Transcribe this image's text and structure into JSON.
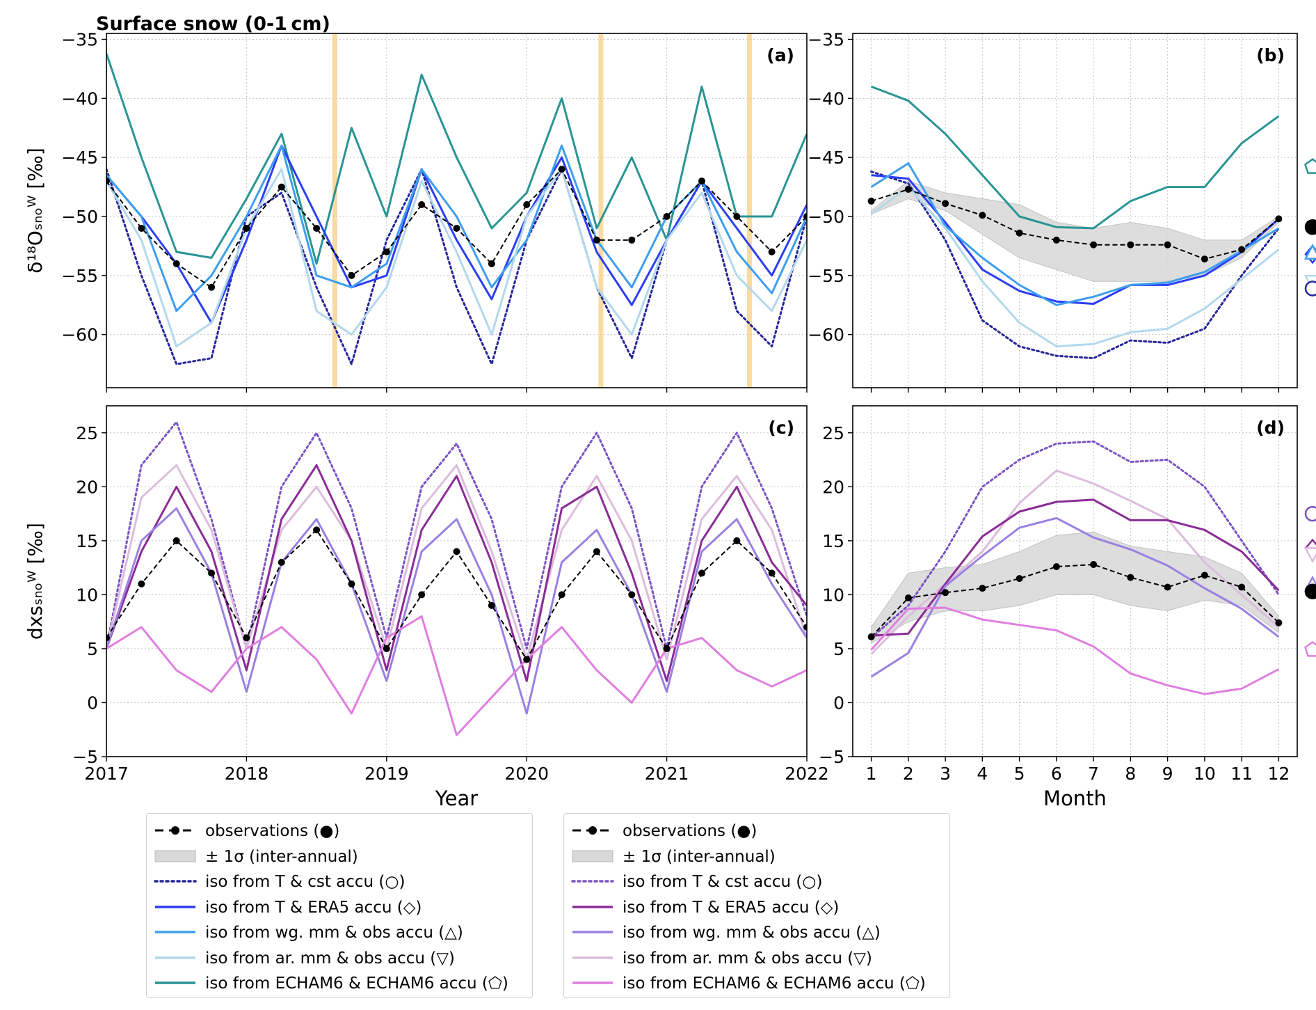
{
  "figure_title": "Surface snow (0-1 cm)",
  "colors": {
    "obs": "#000000",
    "teal": "#2a9494",
    "blue_dot": "#24249a",
    "blue_era5": "#2b3ef5",
    "blue_wg": "#3e9ef0",
    "blue_ar": "#b2d8ec",
    "purple_dot": "#7a52c4",
    "purple_era5": "#8a2c96",
    "purple_wg": "#9a80e2",
    "purple_ar": "#dcbcdc",
    "pink_echam": "#e07ee0",
    "band": "#d8d8d8",
    "highlight": "#f6c870"
  },
  "chart_data": [
    {
      "panel": "a",
      "type": "line",
      "ylabel": "δ¹⁸Oₛₙₒᵂ [‰]",
      "xlabel": "Year",
      "xlim": [
        2017,
        2022
      ],
      "ylim": [
        -64.5,
        -34.5
      ],
      "xticks": [
        "2017",
        "2018",
        "2019",
        "2020",
        "2021",
        "2022"
      ],
      "yticks": [
        "−35",
        "−40",
        "−45",
        "−50",
        "−55",
        "−60"
      ],
      "highlight_x": [
        2018.63,
        2020.53,
        2021.59
      ],
      "x": [
        2017.0,
        2017.25,
        2017.5,
        2017.75,
        2018.0,
        2018.25,
        2018.5,
        2018.75,
        2019.0,
        2019.25,
        2019.5,
        2019.75,
        2020.0,
        2020.25,
        2020.5,
        2020.75,
        2021.0,
        2021.25,
        2021.5,
        2021.75,
        2022.0
      ],
      "series": [
        {
          "name": "iso from ECHAM6 & ECHAM6 accu",
          "key": "teal",
          "values": [
            -36.2,
            -45.0,
            -53.0,
            -53.5,
            -48.5,
            -43.0,
            -54.0,
            -42.5,
            -50.0,
            -38.0,
            -45.0,
            -51.0,
            -48.0,
            -40.0,
            -51.0,
            -45.0,
            -52.0,
            -39.0,
            -50.0,
            -50.0,
            -43.0
          ]
        },
        {
          "name": "iso from T & cst accu",
          "key": "blue_dot",
          "values": [
            -46.0,
            -55.0,
            -62.5,
            -62.0,
            -50.0,
            -48.0,
            -56.0,
            -62.5,
            -52.0,
            -46.0,
            -56.0,
            -62.5,
            -52.0,
            -46.0,
            -56.0,
            -62.0,
            -52.0,
            -47.0,
            -58.0,
            -61.0,
            -50.0
          ]
        },
        {
          "name": "iso from T & ERA5 accu",
          "key": "blue_era5",
          "values": [
            -46.5,
            -50.0,
            -54.0,
            -59.0,
            -52.0,
            -44.0,
            -50.0,
            -56.0,
            -55.0,
            -46.0,
            -52.0,
            -57.0,
            -50.0,
            -45.0,
            -53.0,
            -57.5,
            -52.0,
            -47.0,
            -51.0,
            -55.0,
            -49.0
          ]
        },
        {
          "name": "iso from wg. mm & obs accu",
          "key": "blue_wg",
          "values": [
            -46.5,
            -50.0,
            -58.0,
            -55.0,
            -50.0,
            -44.0,
            -55.0,
            -56.0,
            -54.0,
            -46.0,
            -50.0,
            -56.0,
            -52.0,
            -44.0,
            -52.0,
            -56.0,
            -50.0,
            -47.0,
            -53.0,
            -56.5,
            -50.0
          ]
        },
        {
          "name": "iso from ar. mm & obs accu",
          "key": "blue_ar",
          "values": [
            -47.0,
            -52.0,
            -61.0,
            -59.0,
            -51.0,
            -46.0,
            -58.0,
            -60.0,
            -56.0,
            -47.0,
            -53.0,
            -60.0,
            -50.0,
            -46.0,
            -56.0,
            -60.0,
            -52.0,
            -48.0,
            -55.0,
            -58.0,
            -52.0
          ]
        },
        {
          "name": "observations",
          "key": "obs",
          "values": [
            -47.0,
            -51.0,
            -54.0,
            -56.0,
            -51.0,
            -47.5,
            -51.0,
            -55.0,
            -53.0,
            -49.0,
            -51.0,
            -54.0,
            -49.0,
            -46.0,
            -52.0,
            -52.0,
            -50.0,
            -47.0,
            -50.0,
            -53.0,
            -50.0
          ]
        }
      ]
    },
    {
      "panel": "b",
      "type": "line",
      "xlabel": "Month",
      "xlim": [
        0.5,
        12.5
      ],
      "ylim": [
        -64.5,
        -34.5
      ],
      "xticks": [
        "1",
        "2",
        "3",
        "4",
        "5",
        "6",
        "7",
        "8",
        "9",
        "10",
        "11",
        "12"
      ],
      "yticks": [
        "−35",
        "−40",
        "−45",
        "−50",
        "−55",
        "−60"
      ],
      "x": [
        1,
        2,
        3,
        4,
        5,
        6,
        7,
        8,
        9,
        10,
        11,
        12
      ],
      "band": {
        "upper": [
          -49.5,
          -47.0,
          -48.0,
          -48.5,
          -49.0,
          -50.5,
          -51.0,
          -50.5,
          -51.0,
          -52.0,
          -52.0,
          -50.0
        ],
        "lower": [
          -49.8,
          -48.5,
          -49.5,
          -51.5,
          -53.5,
          -54.5,
          -55.5,
          -55.5,
          -55.5,
          -55.0,
          -53.5,
          -50.5
        ]
      },
      "series": [
        {
          "name": "iso from ECHAM6 & ECHAM6 accu",
          "key": "teal",
          "values": [
            -39.0,
            -40.2,
            -43.0,
            -46.5,
            -50.0,
            -50.9,
            -51.0,
            -48.7,
            -47.5,
            -47.5,
            -43.8,
            -41.5
          ]
        },
        {
          "name": "iso from T & cst accu",
          "key": "blue_dot",
          "values": [
            -46.2,
            -47.2,
            -52.0,
            -58.8,
            -61.0,
            -61.8,
            -62.0,
            -60.5,
            -60.7,
            -59.5,
            -55.0,
            -51.0
          ]
        },
        {
          "name": "iso from T & ERA5 accu",
          "key": "blue_era5",
          "values": [
            -46.5,
            -46.8,
            -50.5,
            -54.5,
            -56.3,
            -57.2,
            -57.4,
            -55.8,
            -55.8,
            -55.0,
            -53.0,
            -50.2
          ]
        },
        {
          "name": "iso from wg. mm & obs accu",
          "key": "blue_wg",
          "values": [
            -47.5,
            -45.5,
            -50.8,
            -53.5,
            -55.8,
            -57.5,
            -56.8,
            -55.8,
            -55.6,
            -54.7,
            -52.9,
            -51.0
          ]
        },
        {
          "name": "iso from ar. mm & obs accu",
          "key": "blue_ar",
          "values": [
            -49.8,
            -47.5,
            -51.0,
            -55.5,
            -59.0,
            -61.0,
            -60.8,
            -59.8,
            -59.5,
            -57.8,
            -55.3,
            -52.8
          ]
        },
        {
          "name": "observations",
          "key": "obs",
          "values": [
            -48.7,
            -47.7,
            -48.9,
            -49.9,
            -51.4,
            -52.0,
            -52.4,
            -52.4,
            -52.4,
            -53.6,
            -52.8,
            -50.2
          ]
        }
      ],
      "annual_means": [
        {
          "key": "teal",
          "marker": "pentagon",
          "value": -45.8
        },
        {
          "key": "obs",
          "marker": "circle",
          "value": -50.9
        },
        {
          "key": "blue_era5",
          "marker": "diamond",
          "value": -53.2
        },
        {
          "key": "blue_wg",
          "marker": "triangle-up",
          "value": -53.1
        },
        {
          "key": "blue_ar",
          "marker": "triangle-down",
          "value": -55.5
        },
        {
          "key": "blue_dot",
          "marker": "circle-open",
          "value": -56.1
        }
      ]
    },
    {
      "panel": "c",
      "type": "line",
      "ylabel": "dxsₛₙₒᵂ [‰]",
      "xlabel": "Year",
      "xlim": [
        2017,
        2022
      ],
      "ylim": [
        -5,
        27.5
      ],
      "xticks": [
        "2017",
        "2018",
        "2019",
        "2020",
        "2021",
        "2022"
      ],
      "yticks": [
        "−5",
        "0",
        "5",
        "10",
        "15",
        "20",
        "25"
      ],
      "x": [
        2017.0,
        2017.25,
        2017.5,
        2017.75,
        2018.0,
        2018.25,
        2018.5,
        2018.75,
        2019.0,
        2019.25,
        2019.5,
        2019.75,
        2020.0,
        2020.25,
        2020.5,
        2020.75,
        2021.0,
        2021.25,
        2021.5,
        2021.75,
        2022.0
      ],
      "series": [
        {
          "name": "iso from T & cst accu",
          "key": "purple_dot",
          "values": [
            5.0,
            22.0,
            26.0,
            17.0,
            5.0,
            20.0,
            25.0,
            18.0,
            6.0,
            20.0,
            24.0,
            17.0,
            5.0,
            20.0,
            25.0,
            18.0,
            5.0,
            20.0,
            25.0,
            18.0,
            8.0
          ]
        },
        {
          "name": "iso from ar. mm & obs accu",
          "key": "purple_ar",
          "values": [
            5.0,
            19.0,
            22.0,
            16.0,
            5.0,
            16.0,
            20.0,
            15.0,
            5.0,
            18.0,
            22.0,
            14.0,
            4.0,
            16.0,
            21.0,
            15.0,
            4.0,
            17.0,
            21.0,
            16.0,
            6.0
          ]
        },
        {
          "name": "iso from T & ERA5 accu",
          "key": "purple_era5",
          "values": [
            5.0,
            14.0,
            20.0,
            14.0,
            3.0,
            17.0,
            22.0,
            15.0,
            3.0,
            16.0,
            21.0,
            13.0,
            2.0,
            18.0,
            20.0,
            12.0,
            2.0,
            15.0,
            20.0,
            13.0,
            9.0
          ]
        },
        {
          "name": "iso from wg. mm & obs accu",
          "key": "purple_wg",
          "values": [
            5.0,
            15.0,
            18.0,
            12.0,
            1.0,
            13.0,
            17.0,
            11.0,
            2.0,
            14.0,
            17.0,
            10.0,
            -1.0,
            13.0,
            16.0,
            10.0,
            1.0,
            14.0,
            17.0,
            11.0,
            6.0
          ]
        },
        {
          "name": "iso from ECHAM6 & ECHAM6 accu",
          "key": "pink_echam",
          "values": [
            5.0,
            7.0,
            3.0,
            1.0,
            5.0,
            7.0,
            4.0,
            -1.0,
            6.0,
            8.0,
            -3.0,
            0.5,
            4.0,
            7.0,
            3.0,
            0.0,
            5.0,
            6.0,
            3.0,
            1.5,
            3.0
          ]
        },
        {
          "name": "observations",
          "key": "obs",
          "values": [
            6.0,
            11.0,
            15.0,
            12.0,
            6.0,
            13.0,
            16.0,
            11.0,
            5.0,
            10.0,
            14.0,
            9.0,
            4.0,
            10.0,
            14.0,
            10.0,
            5.0,
            12.0,
            15.0,
            12.0,
            7.0
          ]
        }
      ]
    },
    {
      "panel": "d",
      "type": "line",
      "xlabel": "Month",
      "xlim": [
        0.5,
        12.5
      ],
      "ylim": [
        -5,
        27.5
      ],
      "xticks": [
        "1",
        "2",
        "3",
        "4",
        "5",
        "6",
        "7",
        "8",
        "9",
        "10",
        "11",
        "12"
      ],
      "yticks": [
        "−5",
        "0",
        "5",
        "10",
        "15",
        "20",
        "25"
      ],
      "x": [
        1,
        2,
        3,
        4,
        5,
        6,
        7,
        8,
        9,
        10,
        11,
        12
      ],
      "band": {
        "upper": [
          7.0,
          12.0,
          12.5,
          12.8,
          14.0,
          15.5,
          15.8,
          14.5,
          14.0,
          13.5,
          12.0,
          8.0
        ],
        "lower": [
          5.5,
          7.5,
          8.5,
          8.5,
          9.0,
          10.0,
          10.0,
          9.0,
          8.5,
          9.5,
          9.0,
          6.5
        ]
      },
      "series": [
        {
          "name": "iso from T & cst accu",
          "key": "purple_dot",
          "values": [
            6.0,
            9.0,
            14.0,
            20.0,
            22.5,
            24.0,
            24.2,
            22.3,
            22.5,
            20.0,
            15.0,
            10.0
          ]
        },
        {
          "name": "iso from ar. mm & obs accu",
          "key": "purple_ar",
          "values": [
            4.5,
            8.0,
            11.0,
            14.0,
            18.5,
            21.5,
            20.3,
            18.7,
            17.0,
            13.0,
            10.0,
            7.0
          ]
        },
        {
          "name": "iso from T & ERA5 accu",
          "key": "purple_era5",
          "values": [
            6.2,
            6.4,
            11.0,
            15.4,
            17.7,
            18.6,
            18.8,
            16.9,
            16.9,
            16.0,
            14.0,
            10.4
          ]
        },
        {
          "name": "iso from wg. mm & obs accu",
          "key": "purple_wg",
          "values": [
            2.4,
            4.6,
            10.8,
            13.6,
            16.2,
            17.1,
            15.3,
            14.2,
            12.7,
            10.6,
            8.7,
            6.1
          ]
        },
        {
          "name": "iso from ECHAM6 & ECHAM6 accu",
          "key": "pink_echam",
          "values": [
            4.9,
            8.7,
            8.8,
            7.7,
            7.2,
            6.7,
            5.2,
            2.7,
            1.6,
            0.8,
            1.3,
            3.1
          ]
        },
        {
          "name": "observations",
          "key": "obs",
          "values": [
            6.1,
            9.7,
            10.2,
            10.6,
            11.5,
            12.6,
            12.8,
            11.6,
            10.7,
            11.8,
            10.7,
            7.4
          ]
        }
      ],
      "annual_means": [
        {
          "key": "purple_dot",
          "marker": "circle-open",
          "value": 17.5
        },
        {
          "key": "purple_era5",
          "marker": "diamond",
          "value": 14.3
        },
        {
          "key": "purple_ar",
          "marker": "triangle-down",
          "value": 13.8
        },
        {
          "key": "purple_wg",
          "marker": "triangle-up",
          "value": 10.9
        },
        {
          "key": "obs",
          "marker": "circle",
          "value": 10.3
        },
        {
          "key": "pink_echam",
          "marker": "pentagon",
          "value": 4.9
        }
      ]
    }
  ],
  "legend_left": [
    {
      "label": "observations (●)",
      "key": "obs",
      "style": "obs"
    },
    {
      "label": "± 1σ (inter-annual)",
      "key": "band",
      "style": "patch"
    },
    {
      "label": "iso from T & cst accu (○)",
      "key": "blue_dot",
      "style": "dotted"
    },
    {
      "label": "iso from T & ERA5 accu (◇)",
      "key": "blue_era5",
      "style": "solid"
    },
    {
      "label": "iso from wg. mm & obs accu (△)",
      "key": "blue_wg",
      "style": "solid"
    },
    {
      "label": "iso from ar. mm & obs accu (▽)",
      "key": "blue_ar",
      "style": "solid"
    },
    {
      "label": "iso from ECHAM6 & ECHAM6 accu (⬠)",
      "key": "teal",
      "style": "solid"
    }
  ],
  "legend_right": [
    {
      "label": "observations (●)",
      "key": "obs",
      "style": "obs"
    },
    {
      "label": "± 1σ (inter-annual)",
      "key": "band",
      "style": "patch"
    },
    {
      "label": "iso from T & cst accu (○)",
      "key": "purple_dot",
      "style": "dotted"
    },
    {
      "label": "iso from T & ERA5 accu (◇)",
      "key": "purple_era5",
      "style": "solid"
    },
    {
      "label": "iso from wg. mm & obs accu (△)",
      "key": "purple_wg",
      "style": "solid"
    },
    {
      "label": "iso from ar. mm & obs accu (▽)",
      "key": "purple_ar",
      "style": "solid"
    },
    {
      "label": "iso from ECHAM6 & ECHAM6 accu (⬠)",
      "key": "pink_echam",
      "style": "solid"
    }
  ]
}
